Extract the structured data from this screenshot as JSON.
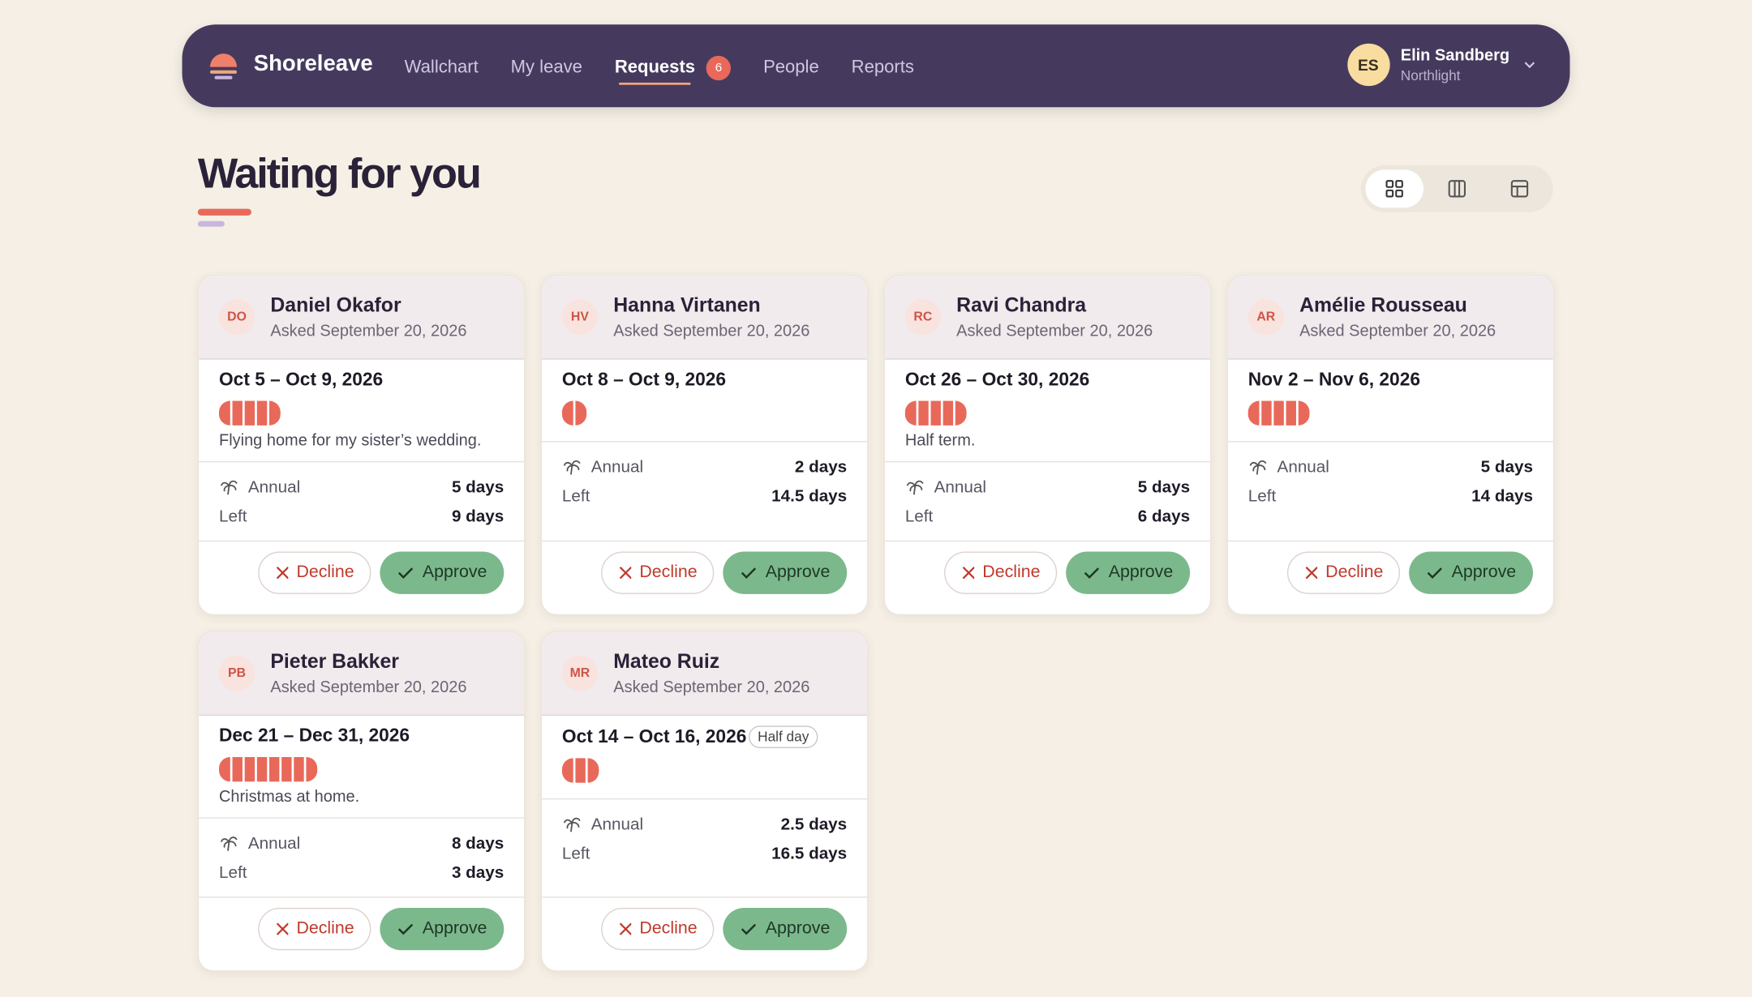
{
  "nav": {
    "brand": "Shoreleave",
    "items": [
      "Wallchart",
      "My leave",
      "Requests",
      "People",
      "Reports"
    ],
    "active": 2,
    "badge": 6,
    "user": {
      "initials": "ES",
      "name": "Elin Sandberg",
      "org": "Northlight"
    }
  },
  "page": {
    "title": "Waiting for you"
  },
  "actions": {
    "decline": "Decline",
    "approve": "Approve"
  },
  "cards": [
    {
      "initials": "DO",
      "name": "Daniel Okafor",
      "asked": "Asked September 20, 2026",
      "dates": "Oct 5 – Oct 9, 2026",
      "note": "Flying home for my sister’s wedding.",
      "type": "Annual",
      "days": "5 days",
      "left_label": "Left",
      "left": "9 days"
    },
    {
      "initials": "HV",
      "name": "Hanna Virtanen",
      "asked": "Asked September 20, 2026",
      "dates": "Oct 8 – Oct 9, 2026",
      "type": "Annual",
      "days": "2 days",
      "left_label": "Left",
      "left": "14.5 days"
    },
    {
      "initials": "RC",
      "name": "Ravi Chandra",
      "asked": "Asked September 20, 2026",
      "dates": "Oct 26 – Oct 30, 2026",
      "note": "Half term.",
      "type": "Annual",
      "days": "5 days",
      "left_label": "Left",
      "left": "6 days"
    },
    {
      "initials": "AR",
      "name": "Amélie Rousseau",
      "asked": "Asked September 20, 2026",
      "dates": "Nov 2 – Nov 6, 2026",
      "type": "Annual",
      "days": "5 days",
      "left_label": "Left",
      "left": "14 days"
    },
    {
      "initials": "PB",
      "name": "Pieter Bakker",
      "asked": "Asked September 20, 2026",
      "dates": "Dec 21 – Dec 31, 2026",
      "note": "Christmas at home.",
      "type": "Annual",
      "days": "8 days",
      "left_label": "Left",
      "left": "3 days"
    },
    {
      "initials": "MR",
      "name": "Mateo Ruiz",
      "asked": "Asked September 20, 2026",
      "dates": "Oct 14 – Oct 16, 2026",
      "tag": "Half day",
      "type": "Annual",
      "days": "2.5 days",
      "left_label": "Left",
      "left": "16.5 days"
    }
  ]
}
